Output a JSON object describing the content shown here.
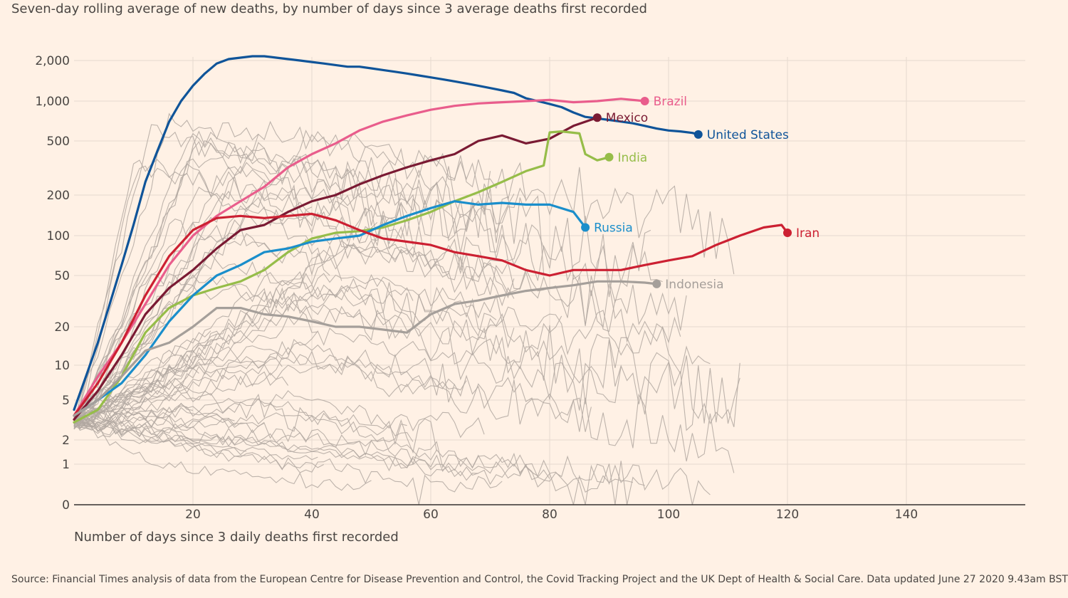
{
  "subtitle": "Seven-day rolling average of new deaths, by number of days since 3 average deaths first recorded",
  "source": "Source: Financial Times analysis of data from the European Centre for Disease Prevention and Control, the Covid Tracking Project and the UK Dept of Health & Social Care. Data updated June 27 2020 9.43am BST",
  "chart_data": {
    "type": "line",
    "title": "",
    "xlabel": "Number of days since 3 daily deaths first recorded",
    "ylabel": "",
    "yscale": "log",
    "xlim": [
      0,
      160
    ],
    "x_ticks": [
      20,
      40,
      60,
      80,
      100,
      120,
      140
    ],
    "x_tick_labels": [
      "20",
      "40",
      "60",
      "80",
      "100",
      "120",
      "140"
    ],
    "y_ticks": [
      0,
      1,
      2,
      5,
      10,
      20,
      50,
      100,
      200,
      500,
      1000,
      2000
    ],
    "y_tick_labels": [
      "0",
      "1",
      "2",
      "5",
      "10",
      "20",
      "50",
      "100",
      "200",
      "500",
      "1,000",
      "2,000"
    ],
    "grid": true,
    "colors": {
      "background": "#fff1e5",
      "grid": "#e6d9ce",
      "other_countries": "#b1a8a1",
      "axis": "#33302e"
    },
    "series": [
      {
        "name": "United States",
        "color": "#0f5499",
        "x": [
          0,
          2,
          4,
          6,
          8,
          10,
          12,
          14,
          16,
          18,
          20,
          22,
          24,
          26,
          28,
          30,
          32,
          34,
          36,
          38,
          40,
          42,
          44,
          46,
          48,
          50,
          52,
          54,
          56,
          58,
          60,
          62,
          64,
          66,
          68,
          70,
          72,
          74,
          76,
          78,
          80,
          82,
          84,
          86,
          88,
          90,
          92,
          94,
          96,
          98,
          100,
          102,
          104,
          105
        ],
        "y": [
          4,
          8,
          15,
          30,
          60,
          120,
          250,
          420,
          700,
          1000,
          1300,
          1600,
          1900,
          2050,
          2100,
          2150,
          2150,
          2100,
          2050,
          2000,
          1950,
          1900,
          1850,
          1800,
          1800,
          1750,
          1700,
          1650,
          1600,
          1550,
          1500,
          1450,
          1400,
          1350,
          1300,
          1250,
          1200,
          1150,
          1050,
          1000,
          950,
          900,
          820,
          760,
          740,
          720,
          700,
          680,
          650,
          620,
          600,
          590,
          575,
          560
        ]
      },
      {
        "name": "Brazil",
        "color": "#e95d8c",
        "x": [
          0,
          4,
          8,
          12,
          16,
          20,
          24,
          28,
          32,
          36,
          40,
          44,
          48,
          52,
          56,
          60,
          64,
          68,
          72,
          76,
          80,
          84,
          88,
          92,
          96
        ],
        "y": [
          3.5,
          8,
          15,
          30,
          60,
          100,
          140,
          180,
          230,
          320,
          400,
          480,
          600,
          700,
          780,
          860,
          920,
          960,
          980,
          1000,
          1020,
          980,
          1000,
          1040,
          1000
        ]
      },
      {
        "name": "Mexico",
        "color": "#7a1a33",
        "x": [
          0,
          4,
          8,
          12,
          16,
          20,
          24,
          28,
          32,
          36,
          40,
          44,
          48,
          52,
          56,
          60,
          64,
          68,
          72,
          76,
          80,
          84,
          88
        ],
        "y": [
          3.2,
          6,
          12,
          25,
          40,
          55,
          80,
          110,
          120,
          150,
          180,
          200,
          240,
          280,
          320,
          360,
          400,
          500,
          550,
          480,
          520,
          650,
          750
        ]
      },
      {
        "name": "India",
        "color": "#96bd49",
        "x": [
          0,
          4,
          8,
          12,
          16,
          20,
          24,
          28,
          32,
          36,
          40,
          44,
          48,
          52,
          56,
          60,
          64,
          68,
          72,
          76,
          79,
          80,
          82,
          85,
          86,
          88,
          90
        ],
        "y": [
          3,
          4,
          8,
          18,
          28,
          35,
          40,
          45,
          55,
          75,
          95,
          105,
          108,
          115,
          130,
          150,
          180,
          210,
          250,
          300,
          330,
          580,
          590,
          570,
          400,
          360,
          380
        ]
      },
      {
        "name": "Russia",
        "color": "#1a8ecb",
        "x": [
          0,
          4,
          8,
          12,
          16,
          20,
          24,
          28,
          32,
          36,
          40,
          44,
          48,
          52,
          56,
          60,
          64,
          68,
          72,
          76,
          80,
          84,
          86
        ],
        "y": [
          3.5,
          5,
          7,
          12,
          22,
          35,
          50,
          60,
          75,
          80,
          90,
          95,
          100,
          120,
          140,
          160,
          180,
          170,
          175,
          170,
          170,
          150,
          115
        ]
      },
      {
        "name": "Iran",
        "color": "#cc2032",
        "x": [
          0,
          4,
          8,
          12,
          16,
          20,
          24,
          28,
          32,
          36,
          40,
          44,
          48,
          52,
          56,
          60,
          64,
          68,
          72,
          76,
          80,
          84,
          88,
          92,
          96,
          100,
          104,
          108,
          112,
          116,
          119,
          120
        ],
        "y": [
          3.5,
          7,
          15,
          35,
          70,
          110,
          135,
          140,
          135,
          140,
          145,
          130,
          110,
          95,
          90,
          85,
          75,
          70,
          65,
          55,
          50,
          55,
          55,
          55,
          60,
          65,
          70,
          85,
          100,
          115,
          120,
          105
        ]
      },
      {
        "name": "Indonesia",
        "color": "#a59f9a",
        "x": [
          0,
          4,
          8,
          12,
          16,
          20,
          24,
          28,
          32,
          36,
          40,
          44,
          48,
          52,
          56,
          60,
          64,
          68,
          72,
          76,
          80,
          84,
          88,
          92,
          96,
          98
        ],
        "y": [
          3.5,
          5,
          8,
          13,
          15,
          20,
          28,
          28,
          25,
          24,
          22,
          20,
          20,
          19,
          18,
          25,
          30,
          32,
          35,
          38,
          40,
          42,
          45,
          45,
          44,
          43
        ]
      }
    ]
  }
}
